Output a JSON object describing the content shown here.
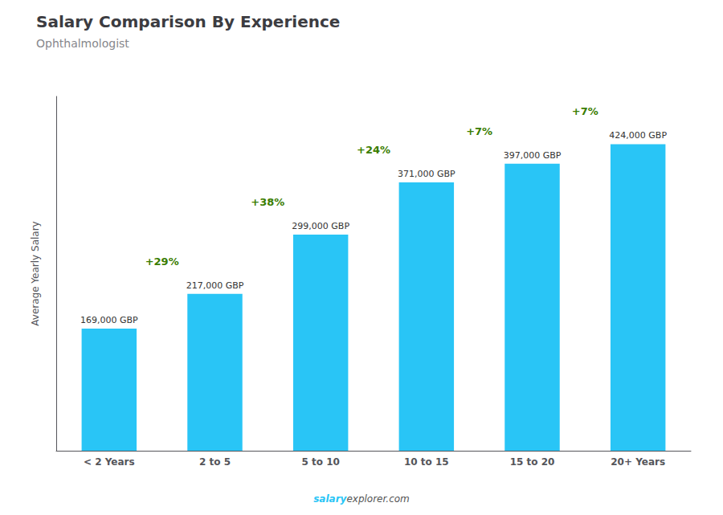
{
  "chart_data": {
    "type": "bar",
    "title": "Salary Comparison By Experience",
    "subtitle": "Ophthalmologist",
    "categories": [
      "< 2 Years",
      "2 to 5",
      "5 to 10",
      "10 to 15",
      "15 to 20",
      "20+ Years"
    ],
    "values": [
      169000,
      217000,
      299000,
      371000,
      397000,
      424000
    ],
    "value_labels": [
      "169,000 GBP",
      "217,000 GBP",
      "299,000 GBP",
      "371,000 GBP",
      "397,000 GBP",
      "424,000 GBP"
    ],
    "data_labels": true,
    "color": "#29c5f6",
    "ylabel": "Average Yearly Salary",
    "ylim": [
      0,
      490000
    ],
    "tick_labels": "x",
    "grid": false,
    "annotations": [
      "+29%",
      "+38%",
      "+24%",
      "+7%",
      "+7%"
    ],
    "footer": [
      "salary",
      "explorer.com"
    ]
  }
}
